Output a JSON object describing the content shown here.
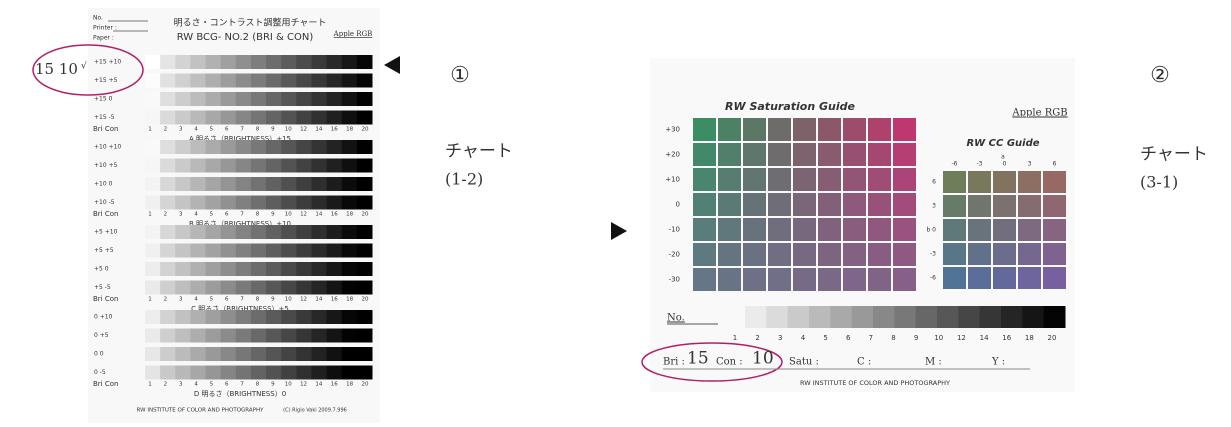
{
  "chart1": {
    "header": {
      "no": "No.",
      "printer": "Printer :",
      "paper": "Paper :",
      "title_jp": "明るさ・コントラスト調整用チャート",
      "title": "RW BCG- NO.2  (BRI & CON)",
      "profile": "Apple RGB"
    },
    "annotation": "15  10",
    "check": "√",
    "blocks": [
      {
        "rows": [
          "+15 +10",
          "+15 +5",
          "+15 0",
          "+15 -5"
        ],
        "axis_label": "Bri  Con",
        "caption": "A  明るさ（BRIGHTNESS）+15"
      },
      {
        "rows": [
          "+10 +10",
          "+10 +5",
          "+10 0",
          "+10 -5"
        ],
        "axis_label": "Bri  Con",
        "caption": "B  明るさ（BRIGHTNESS）+10"
      },
      {
        "rows": [
          "+5 +10",
          "+5 +5",
          "+5 0",
          "+5 -5"
        ],
        "axis_label": "Bri  Con",
        "caption": "C  明るさ（BRIGHTNESS）+5"
      },
      {
        "rows": [
          "0 +10",
          "0 +5",
          "0 0",
          "0 -5"
        ],
        "axis_label": "Bri  Con",
        "caption": "D  明るさ（BRIGHTNESS）0"
      }
    ],
    "scale": [
      1,
      2,
      3,
      4,
      5,
      6,
      7,
      8,
      9,
      10,
      12,
      14,
      16,
      18,
      20
    ],
    "footer": "RW INSTITUTE OF COLOR AND PHOTOGRAPHY",
    "credit": "(C) Rigio Vaki 2009.7.996"
  },
  "marker1": "①",
  "label1": "チャート",
  "label1_code": "(1-2)",
  "chart2": {
    "title": "RW Saturation Guide",
    "profile": "Apple RGB",
    "rows": [
      "+30",
      "+20",
      "+10",
      "0",
      "-10",
      "-20",
      "-30"
    ],
    "cc_title": "RW CC Guide",
    "cc_axis_a": "a",
    "cc_x": [
      "-6",
      "-3",
      "0",
      "3",
      "6"
    ],
    "cc_y": [
      "6",
      "3",
      "b 0",
      "-3",
      "-6"
    ],
    "no": "No.",
    "scale": [
      1,
      2,
      3,
      4,
      5,
      6,
      7,
      8,
      9,
      10,
      12,
      14,
      16,
      18,
      20
    ],
    "bri_label": "Bri :",
    "bri": "15",
    "con_label": "Con :",
    "con": "10",
    "satu_label": "Satu :",
    "c_label": "C :",
    "m_label": "M :",
    "y_label": "Y :",
    "footer": "RW INSTITUTE OF COLOR AND PHOTOGRAPHY"
  },
  "marker2": "②",
  "label2": "チャート",
  "label2_code": "(3-1)"
}
